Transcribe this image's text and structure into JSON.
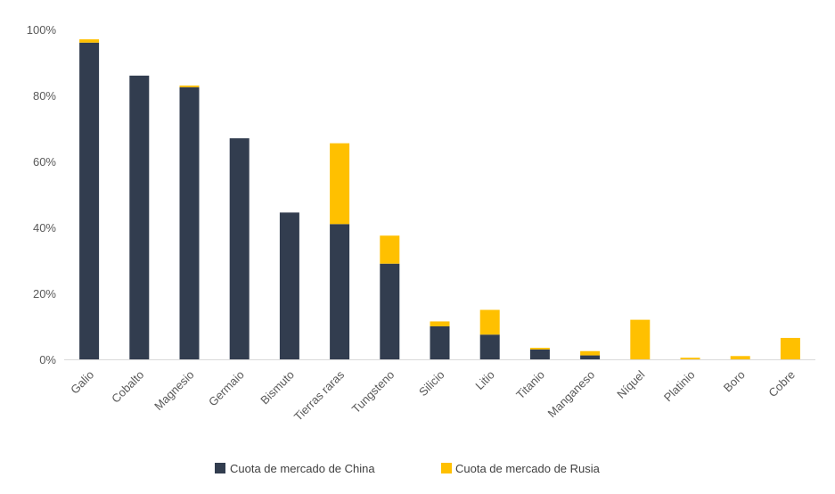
{
  "chart_data": {
    "type": "bar",
    "stacked": true,
    "categories": [
      "Galio",
      "Cobalto",
      "Magnesio",
      "Germaio",
      "Bismuto",
      "Tierras raras",
      "Tungsteno",
      "Silicio",
      "Litio",
      "Titanio",
      "Manganeso",
      "Níquel",
      "Platinio",
      "Boro",
      "Cobre"
    ],
    "series": [
      {
        "name": "Cuota de mercado de China",
        "color": "#323d4f",
        "values": [
          96,
          86,
          82.5,
          67,
          44.5,
          41,
          29,
          10,
          7.5,
          3,
          1.2,
          0,
          0,
          0,
          0
        ]
      },
      {
        "name": "Cuota de mercado de Rusia",
        "color": "#ffc000",
        "values": [
          1,
          0,
          0.5,
          0,
          0,
          24.5,
          8.5,
          1.5,
          7.5,
          0.5,
          1.3,
          12,
          0.5,
          1,
          6.5
        ]
      }
    ],
    "y_ticks": [
      "0%",
      "20%",
      "40%",
      "60%",
      "80%",
      "100%"
    ],
    "ylim": [
      0,
      100
    ],
    "grid": false,
    "legend_position": "bottom"
  }
}
